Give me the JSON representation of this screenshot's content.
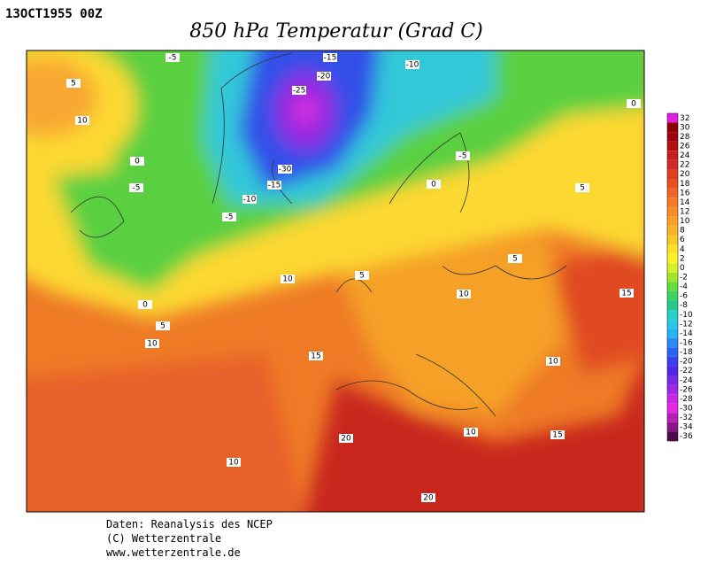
{
  "header": {
    "timestamp": "13OCT1955 00Z",
    "title": "850 hPa Temperatur (Grad C)"
  },
  "colorbar": {
    "levels": [
      32,
      30,
      28,
      26,
      24,
      22,
      20,
      18,
      16,
      14,
      12,
      10,
      8,
      6,
      4,
      2,
      0,
      -2,
      -4,
      -6,
      -8,
      -10,
      -12,
      -14,
      -16,
      -18,
      -20,
      -22,
      -24,
      -26,
      -28,
      -30,
      -32,
      -34,
      -36
    ],
    "colors": [
      "#e020e0",
      "#8b0000",
      "#a00010",
      "#b41010",
      "#c81e1e",
      "#d22828",
      "#e03c1e",
      "#e85020",
      "#f06428",
      "#f57828",
      "#f88c28",
      "#faa028",
      "#fbb428",
      "#fcc828",
      "#fde028",
      "#fff028",
      "#d8f028",
      "#a0e628",
      "#64dc3c",
      "#3cd264",
      "#28c88c",
      "#28d2c8",
      "#28c8e6",
      "#28b4f0",
      "#288cf0",
      "#2864f0",
      "#3c3cf0",
      "#5028e6",
      "#7828e6",
      "#a028e6",
      "#c828e6",
      "#e628e6",
      "#b41eb4",
      "#8c148c",
      "#500a50"
    ]
  },
  "contour_labels": [
    -5,
    -15,
    -10,
    -20,
    -25,
    5,
    10,
    0,
    -5,
    -30,
    -15,
    -10,
    -5,
    -5,
    0,
    5,
    0,
    10,
    5,
    0,
    5,
    10,
    5,
    10,
    15,
    15,
    10,
    20,
    10,
    15,
    10,
    20
  ],
  "footer": [
    "Daten: Reanalysis des NCEP",
    "(C) Wetterzentrale",
    "www.wetterzentrale.de"
  ]
}
